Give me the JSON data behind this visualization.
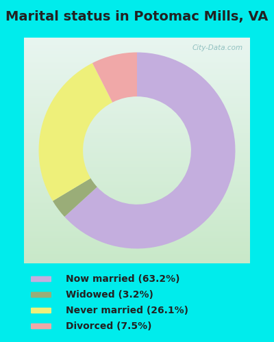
{
  "title": "Marital status in Potomac Mills, VA",
  "categories": [
    "Now married",
    "Widowed",
    "Never married",
    "Divorced"
  ],
  "values": [
    63.2,
    3.2,
    26.1,
    7.5
  ],
  "colors": [
    "#c4aede",
    "#9aad78",
    "#eef07a",
    "#f0a8a8"
  ],
  "legend_labels": [
    "Now married (63.2%)",
    "Widowed (3.2%)",
    "Never married (26.1%)",
    "Divorced (7.5%)"
  ],
  "outer_bg": "#00ecec",
  "chart_bg_top": "#e8f5f0",
  "chart_bg_bottom": "#c8e8c8",
  "legend_bg": "#00ecec",
  "title_color": "#222222",
  "watermark": "City-Data.com",
  "start_angle": 90,
  "donut_width": 0.45,
  "title_fontsize": 14
}
